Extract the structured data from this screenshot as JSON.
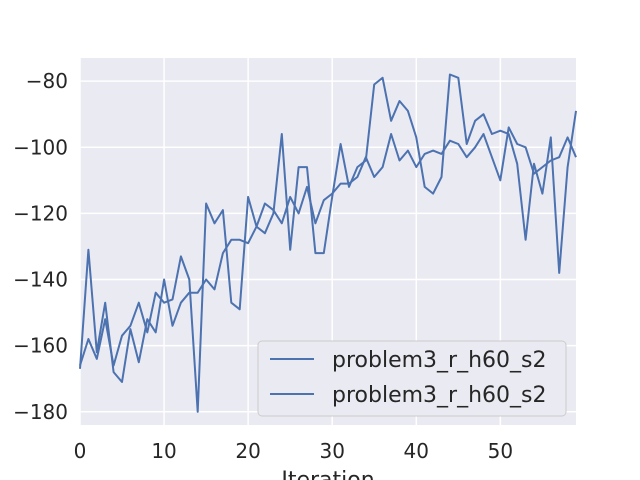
{
  "chart_data": {
    "type": "line",
    "title": "",
    "xlabel": "Iteration",
    "ylabel": "",
    "xlim": [
      0,
      59
    ],
    "ylim": [
      -184,
      -73
    ],
    "xticks": [
      0,
      10,
      20,
      30,
      40,
      50
    ],
    "yticks": [
      -180,
      -160,
      -140,
      -120,
      -100,
      -80
    ],
    "xtick_labels": [
      "0",
      "10",
      "20",
      "30",
      "40",
      "50"
    ],
    "ytick_labels": [
      "−180",
      "−160",
      "−140",
      "−120",
      "−100",
      "−80"
    ],
    "grid": true,
    "legend_position": "lower-right",
    "colors": {
      "background": "#eaeaf2",
      "grid": "#ffffff",
      "line": "#4c72b0",
      "text": "#262626"
    },
    "series": [
      {
        "name": "problem3_r_h60_s2",
        "x": [
          0,
          1,
          2,
          3,
          4,
          5,
          6,
          7,
          8,
          9,
          10,
          11,
          12,
          13,
          14,
          15,
          16,
          17,
          18,
          19,
          20,
          21,
          22,
          23,
          24,
          25,
          26,
          27,
          28,
          29,
          30,
          31,
          32,
          33,
          34,
          35,
          36,
          37,
          38,
          39,
          40,
          41,
          42,
          43,
          44,
          45,
          46,
          47,
          48,
          49,
          50,
          51,
          52,
          53,
          54,
          55,
          56,
          57,
          58,
          59
        ],
        "y": [
          -167,
          -131,
          -162,
          -147,
          -168,
          -171,
          -155,
          -165,
          -152,
          -156,
          -140,
          -154,
          -147,
          -144,
          -144,
          -140,
          -143,
          -132,
          -128,
          -128,
          -129,
          -124,
          -126,
          -120,
          -96,
          -131,
          -106,
          -106,
          -132,
          -132,
          -115,
          -99,
          -112,
          -106,
          -104,
          -81,
          -79,
          -92,
          -86,
          -89,
          -97,
          -112,
          -114,
          -109,
          -78,
          -79,
          -99,
          -92,
          -90,
          -96,
          -95,
          -96,
          -105,
          -128,
          -105,
          -114,
          -97,
          -138,
          -106,
          -89
        ]
      },
      {
        "name": "problem3_r_h60_s2",
        "x": [
          0,
          1,
          2,
          3,
          4,
          5,
          6,
          7,
          8,
          9,
          10,
          11,
          12,
          13,
          14,
          15,
          16,
          17,
          18,
          19,
          20,
          21,
          22,
          23,
          24,
          25,
          26,
          27,
          28,
          29,
          30,
          31,
          32,
          33,
          34,
          35,
          36,
          37,
          38,
          39,
          40,
          41,
          42,
          43,
          44,
          45,
          46,
          47,
          48,
          49,
          50,
          51,
          52,
          53,
          54,
          55,
          56,
          57,
          58,
          59
        ],
        "y": [
          -166,
          -158,
          -164,
          -152,
          -166,
          -157,
          -154,
          -147,
          -156,
          -144,
          -147,
          -146,
          -133,
          -140,
          -180,
          -117,
          -123,
          -119,
          -147,
          -149,
          -115,
          -124,
          -117,
          -119,
          -123,
          -115,
          -120,
          -112,
          -123,
          -116,
          -114,
          -111,
          -111,
          -109,
          -103,
          -109,
          -106,
          -96,
          -104,
          -101,
          -106,
          -102,
          -101,
          -102,
          -98,
          -99,
          -103,
          -100,
          -96,
          -103,
          -110,
          -94,
          -99,
          -100,
          -108,
          -106,
          -104,
          -103,
          -97,
          -103
        ]
      }
    ]
  }
}
